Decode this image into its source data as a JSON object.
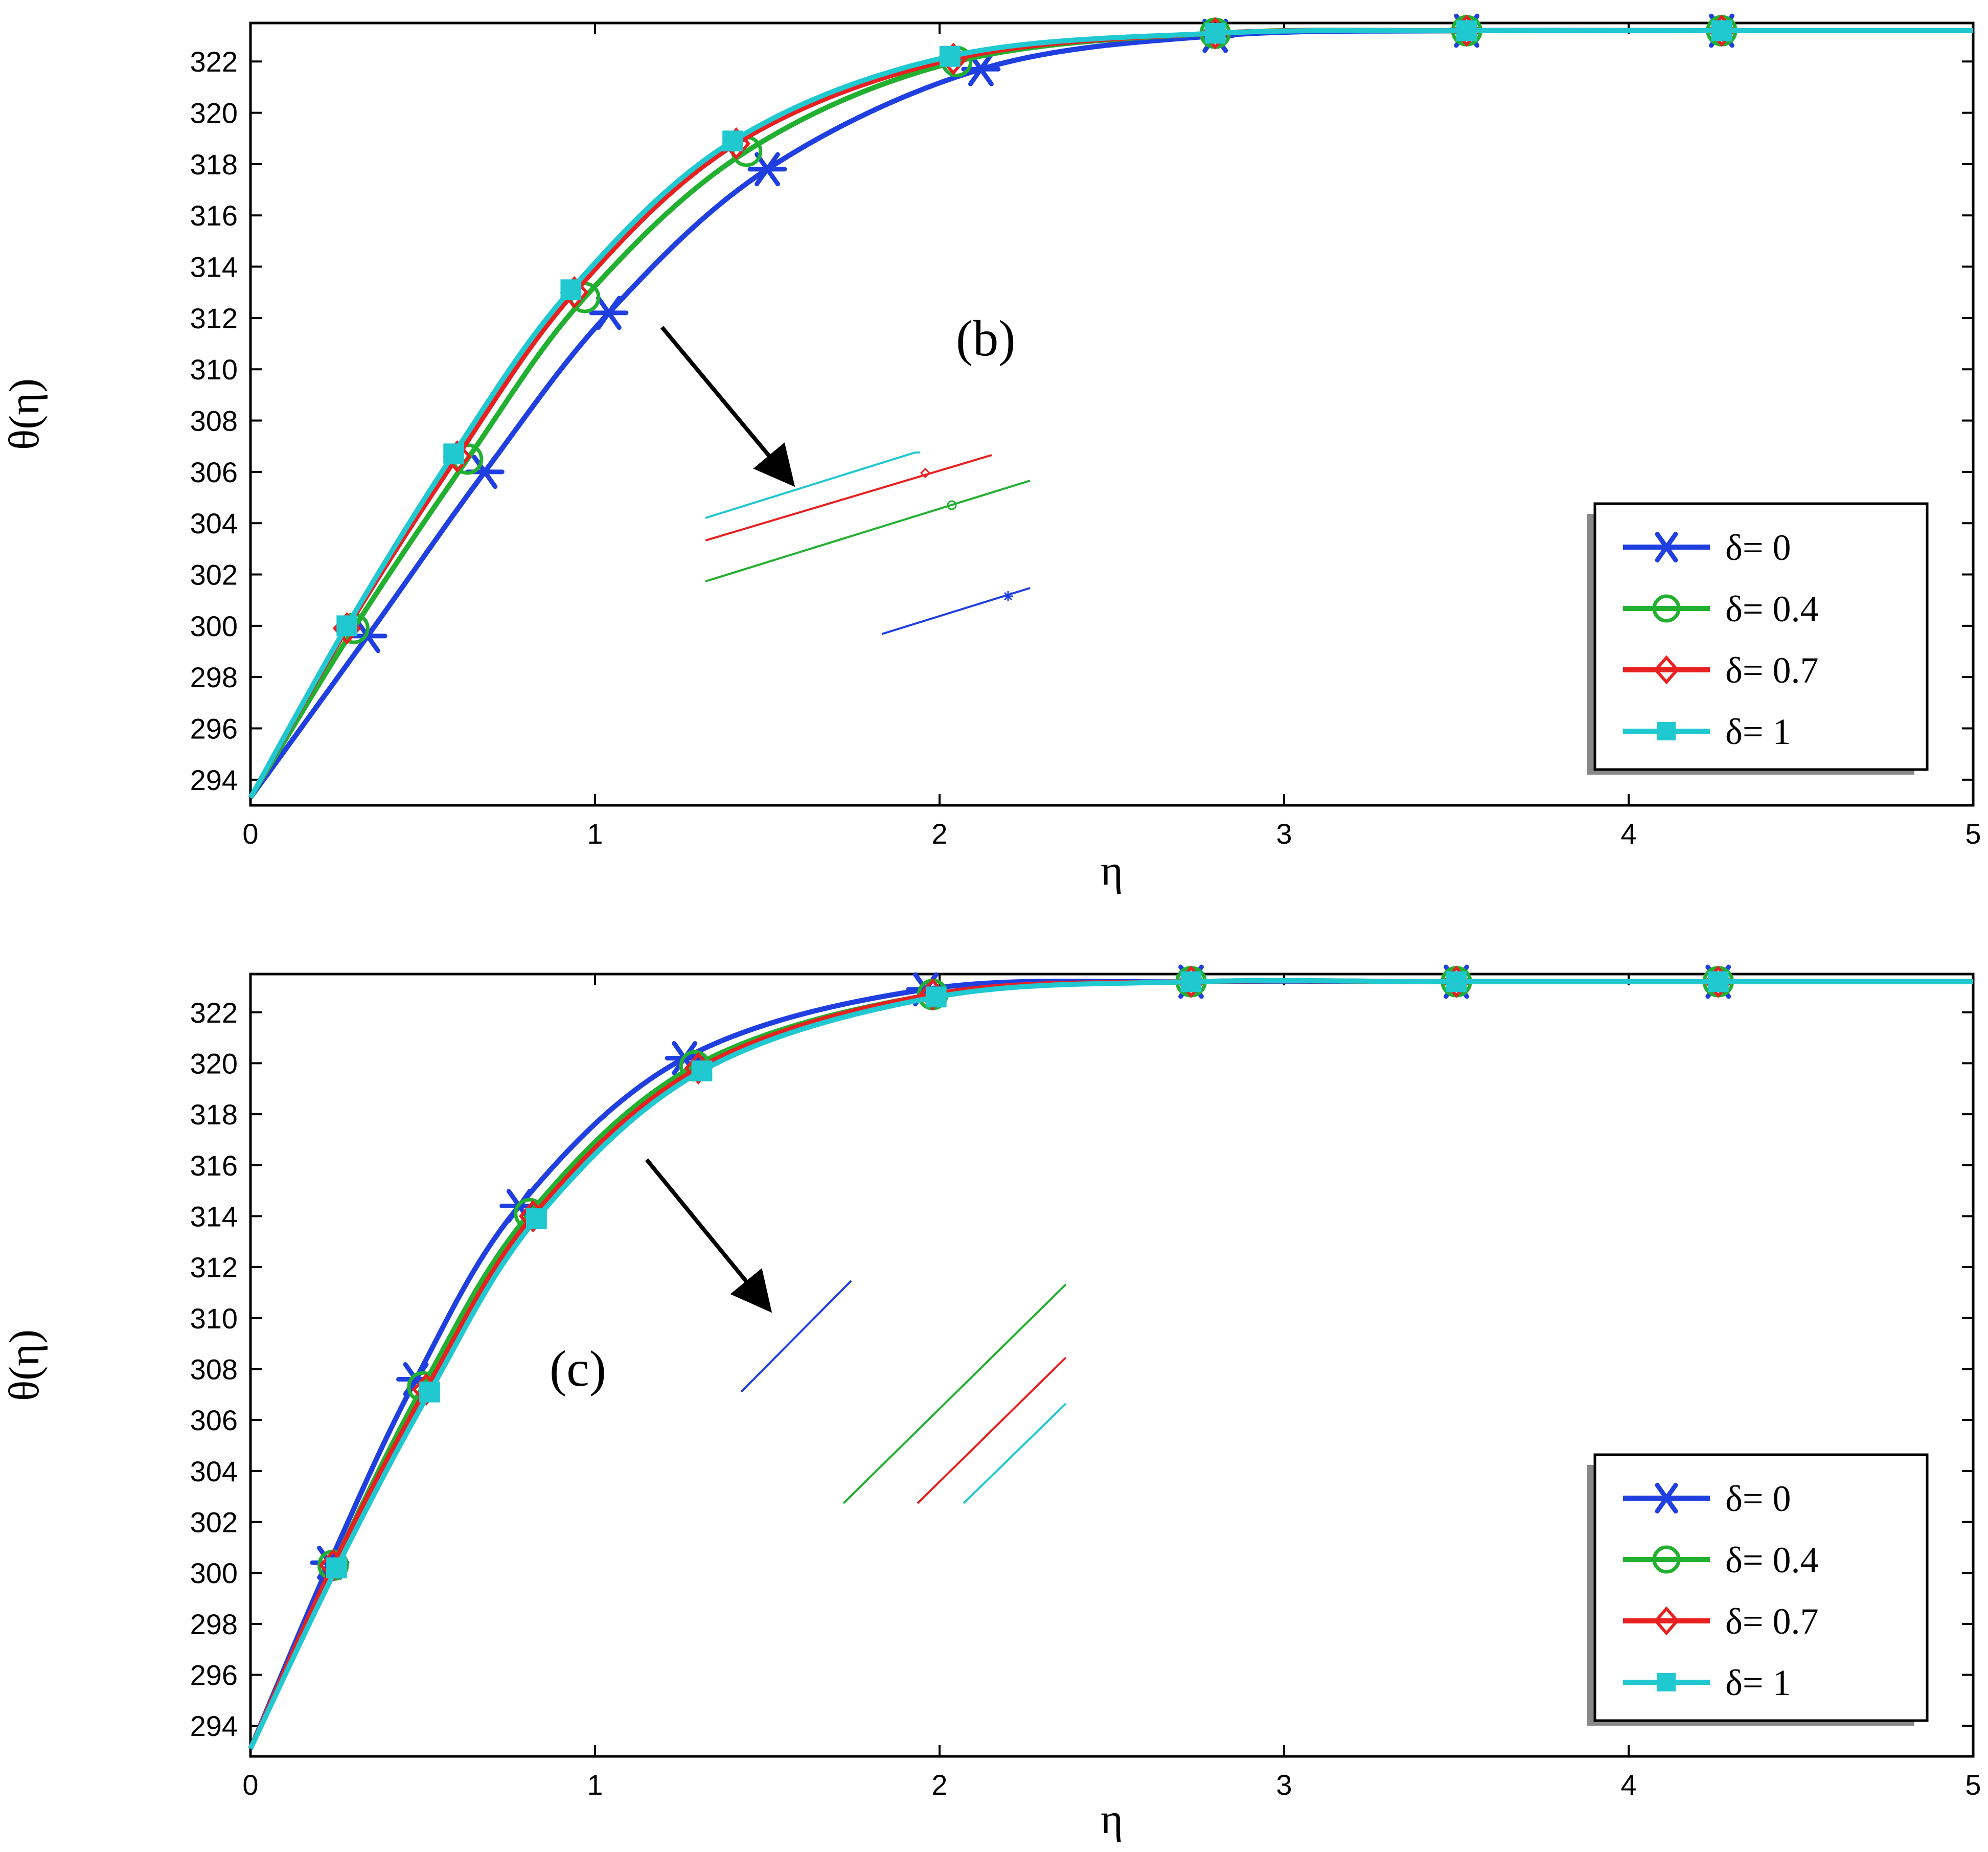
{
  "chart_data": [
    {
      "type": "line",
      "panel_label": "(b)",
      "xlabel": "η",
      "ylabel": "θ(η)",
      "xlim": [
        0,
        5
      ],
      "ylim": [
        293,
        323.5
      ],
      "x_ticks": [
        0,
        1,
        2,
        3,
        4,
        5
      ],
      "y_ticks": [
        294,
        296,
        298,
        300,
        302,
        304,
        306,
        308,
        310,
        312,
        314,
        316,
        318,
        320,
        322
      ],
      "grid": false,
      "legend_position": "lower-right",
      "series": [
        {
          "name": "δ= 0",
          "color": "#1f3fe0",
          "marker": "asterisk",
          "x": [
            0,
            0.34,
            0.68,
            1.04,
            1.5,
            2.12,
            2.8,
            3.53,
            4.27,
            5
          ],
          "y": [
            293.3,
            299.6,
            306.0,
            312.2,
            317.8,
            321.7,
            323.0,
            323.2,
            323.2,
            323.2
          ]
        },
        {
          "name": "δ= 0.4",
          "color": "#22b030",
          "marker": "circle",
          "x": [
            0,
            0.3,
            0.63,
            0.97,
            1.44,
            2.05,
            2.8,
            3.53,
            4.27,
            5
          ],
          "y": [
            293.3,
            299.9,
            306.5,
            312.8,
            318.5,
            322.0,
            323.1,
            323.2,
            323.2,
            323.2
          ]
        },
        {
          "name": "δ= 0.7",
          "color": "#e82020",
          "marker": "diamond",
          "x": [
            0,
            0.28,
            0.6,
            0.94,
            1.41,
            2.04,
            2.8,
            3.53,
            4.27,
            5
          ],
          "y": [
            293.3,
            299.9,
            306.6,
            313.0,
            318.8,
            322.1,
            323.1,
            323.2,
            323.2,
            323.2
          ]
        },
        {
          "name": "δ= 1",
          "color": "#20c8d0",
          "marker": "square",
          "x": [
            0,
            0.28,
            0.59,
            0.93,
            1.4,
            2.03,
            2.8,
            3.53,
            4.27,
            5
          ],
          "y": [
            293.3,
            300.0,
            306.7,
            313.1,
            318.9,
            322.2,
            323.1,
            323.2,
            323.2,
            323.2
          ]
        }
      ]
    },
    {
      "type": "line",
      "panel_label": "(c)",
      "xlabel": "η",
      "ylabel": "θ(η)",
      "xlim": [
        0,
        5
      ],
      "ylim": [
        292.8,
        323.5
      ],
      "x_ticks": [
        0,
        1,
        2,
        3,
        4,
        5
      ],
      "y_ticks": [
        294,
        296,
        298,
        300,
        302,
        304,
        306,
        308,
        310,
        312,
        314,
        316,
        318,
        320,
        322
      ],
      "grid": false,
      "legend_position": "lower-right",
      "series": [
        {
          "name": "δ= 0",
          "color": "#1f3fe0",
          "marker": "asterisk",
          "x": [
            0,
            0.23,
            0.48,
            0.78,
            1.26,
            1.96,
            2.73,
            3.5,
            4.26,
            5
          ],
          "y": [
            293.1,
            300.4,
            307.6,
            314.4,
            320.2,
            322.9,
            323.2,
            323.2,
            323.2,
            323.2
          ]
        },
        {
          "name": "δ= 0.4",
          "color": "#22b030",
          "marker": "circle",
          "x": [
            0,
            0.24,
            0.5,
            0.81,
            1.29,
            1.98,
            2.73,
            3.5,
            4.26,
            5
          ],
          "y": [
            293.1,
            300.3,
            307.3,
            314.1,
            319.9,
            322.7,
            323.2,
            323.2,
            323.2,
            323.2
          ]
        },
        {
          "name": "δ= 0.7",
          "color": "#e82020",
          "marker": "diamond",
          "x": [
            0,
            0.24,
            0.51,
            0.82,
            1.3,
            1.98,
            2.73,
            3.5,
            4.26,
            5
          ],
          "y": [
            293.1,
            300.3,
            307.2,
            314.0,
            319.8,
            322.7,
            323.2,
            323.2,
            323.2,
            323.2
          ]
        },
        {
          "name": "δ= 1",
          "color": "#20c8d0",
          "marker": "square",
          "x": [
            0,
            0.25,
            0.52,
            0.83,
            1.31,
            1.99,
            2.73,
            3.5,
            4.26,
            5
          ],
          "y": [
            293.1,
            300.2,
            307.1,
            313.9,
            319.7,
            322.6,
            323.2,
            323.2,
            323.2,
            323.2
          ]
        }
      ]
    }
  ]
}
